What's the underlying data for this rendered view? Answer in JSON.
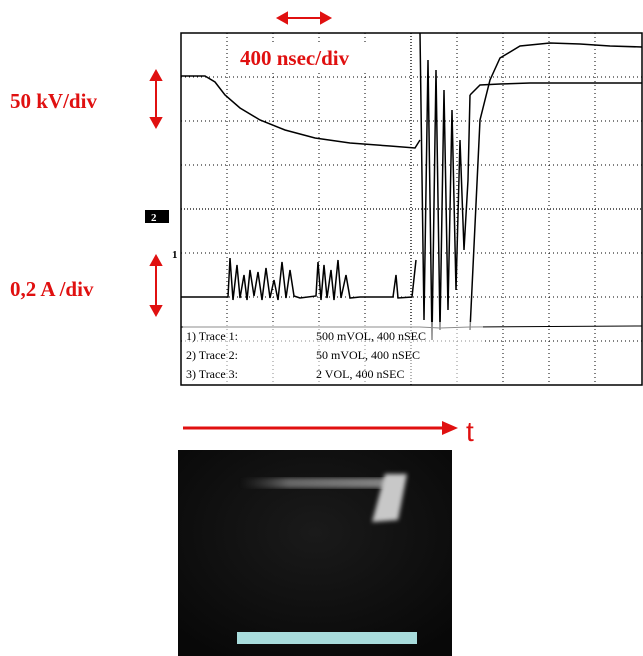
{
  "scope": {
    "timebase": "400 nsec/div",
    "voltage_scale": "50 kV/div",
    "current_scale": "0,2 A /div",
    "markers": [
      "2",
      "1"
    ],
    "legend": [
      {
        "label": "1) Trace 1:",
        "setting": "500 mVOL, 400 nSEC"
      },
      {
        "label": "2) Trace 2:",
        "setting": "50 mVOL, 400 nSEC"
      },
      {
        "label": "3) Trace 3:",
        "setting": "2 VOL, 400 nSEC"
      }
    ]
  },
  "streak": {
    "axis_label": "t"
  }
}
